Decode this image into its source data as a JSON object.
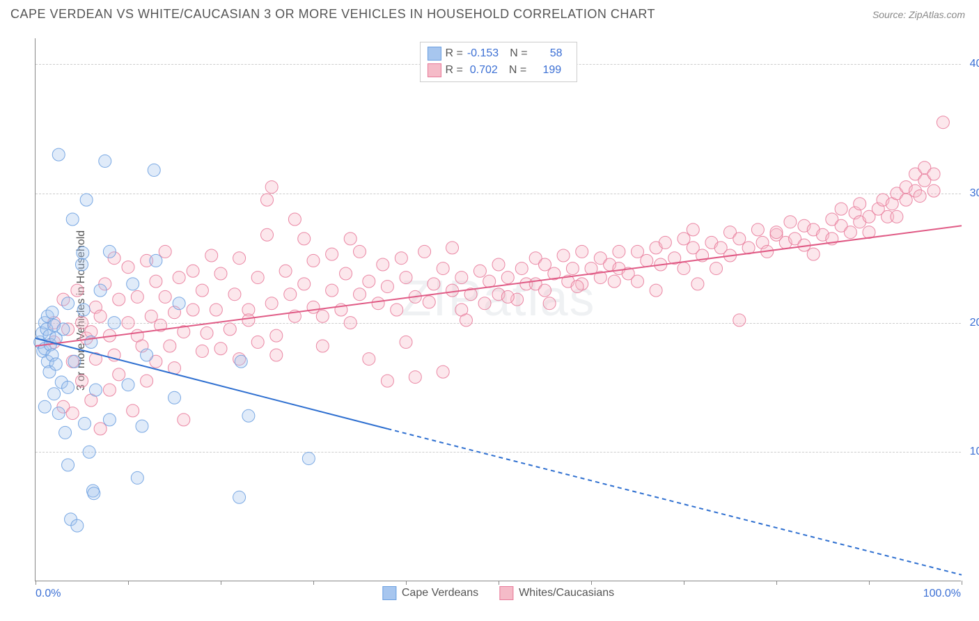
{
  "header": {
    "title": "CAPE VERDEAN VS WHITE/CAUCASIAN 3 OR MORE VEHICLES IN HOUSEHOLD CORRELATION CHART",
    "source": "Source: ZipAtlas.com"
  },
  "chart": {
    "type": "scatter",
    "ylabel": "3 or more Vehicles in Household",
    "xlim": [
      0,
      100
    ],
    "ylim": [
      0,
      42
    ],
    "xtick_labels": {
      "min": "0.0%",
      "max": "100.0%"
    },
    "xtick_positions": [
      0,
      10,
      20,
      30,
      40,
      50,
      60,
      70,
      80,
      90,
      100
    ],
    "ytick_positions": [
      10,
      20,
      30,
      40
    ],
    "ytick_labels": [
      "10.0%",
      "20.0%",
      "30.0%",
      "40.0%"
    ],
    "grid_color": "#cccccc",
    "background_color": "#ffffff",
    "axis_color": "#888888",
    "label_color": "#555555",
    "tick_label_color": "#3b6fd4",
    "marker_radius": 9,
    "marker_fill_opacity": 0.35,
    "marker_stroke_opacity": 0.9,
    "line_width": 2,
    "watermark": "ZIPatlas",
    "series": [
      {
        "name": "Cape Verdeans",
        "color_fill": "#a7c6ef",
        "color_stroke": "#6a9fe0",
        "R": "-0.153",
        "N": "58",
        "trend": {
          "solid_x1": 0,
          "solid_y1": 18.8,
          "solid_x2": 38,
          "solid_y2": 11.8,
          "dash_x2": 100,
          "dash_y2": 0.5,
          "line_color": "#2e6fd0"
        },
        "points": [
          [
            0.5,
            18.5
          ],
          [
            0.7,
            19.2
          ],
          [
            0.8,
            17.8
          ],
          [
            1.0,
            20.0
          ],
          [
            1.0,
            18.0
          ],
          [
            1.2,
            19.5
          ],
          [
            1.3,
            17.0
          ],
          [
            1.3,
            20.5
          ],
          [
            1.5,
            19.0
          ],
          [
            1.5,
            16.2
          ],
          [
            1.6,
            18.3
          ],
          [
            1.8,
            20.8
          ],
          [
            1.8,
            17.5
          ],
          [
            2.0,
            14.5
          ],
          [
            2.0,
            19.8
          ],
          [
            2.2,
            16.8
          ],
          [
            2.2,
            18.8
          ],
          [
            2.5,
            13.0
          ],
          [
            2.8,
            15.4
          ],
          [
            2.5,
            33.0
          ],
          [
            3.0,
            19.5
          ],
          [
            3.2,
            11.5
          ],
          [
            3.5,
            9.0
          ],
          [
            3.5,
            21.5
          ],
          [
            3.5,
            15.0
          ],
          [
            4.0,
            28.0
          ],
          [
            4.2,
            17.0
          ],
          [
            5.0,
            24.5
          ],
          [
            5.1,
            25.4
          ],
          [
            5.2,
            21.0
          ],
          [
            5.3,
            12.2
          ],
          [
            5.5,
            29.5
          ],
          [
            6.0,
            18.5
          ],
          [
            6.2,
            7.0
          ],
          [
            6.3,
            6.8
          ],
          [
            6.5,
            14.8
          ],
          [
            7.0,
            22.5
          ],
          [
            7.5,
            32.5
          ],
          [
            8.0,
            25.5
          ],
          [
            8.0,
            12.5
          ],
          [
            8.5,
            20.0
          ],
          [
            10.0,
            15.2
          ],
          [
            10.5,
            23.0
          ],
          [
            11.0,
            8.0
          ],
          [
            11.5,
            12.0
          ],
          [
            12.0,
            17.5
          ],
          [
            12.8,
            31.8
          ],
          [
            13.0,
            24.8
          ],
          [
            15.0,
            14.2
          ],
          [
            15.5,
            21.5
          ],
          [
            22.0,
            6.5
          ],
          [
            22.2,
            17.0
          ],
          [
            23.0,
            12.8
          ],
          [
            29.5,
            9.5
          ],
          [
            3.8,
            4.8
          ],
          [
            4.5,
            4.3
          ],
          [
            5.8,
            10.0
          ],
          [
            1.0,
            13.5
          ]
        ]
      },
      {
        "name": "Whites/Caucasians",
        "color_fill": "#f5bbc8",
        "color_stroke": "#e87a9a",
        "R": "0.702",
        "N": "199",
        "trend": {
          "solid_x1": 0,
          "solid_y1": 18.2,
          "solid_x2": 100,
          "solid_y2": 27.5,
          "line_color": "#e05a85"
        },
        "points": [
          [
            2,
            20
          ],
          [
            2,
            18.5
          ],
          [
            3,
            13.5
          ],
          [
            3,
            21.8
          ],
          [
            3.5,
            19.5
          ],
          [
            4,
            17
          ],
          [
            4,
            13
          ],
          [
            4.5,
            22.5
          ],
          [
            5,
            20
          ],
          [
            5,
            15.5
          ],
          [
            5.5,
            18.8
          ],
          [
            6,
            14
          ],
          [
            6,
            19.3
          ],
          [
            6.5,
            21.2
          ],
          [
            6.5,
            17.2
          ],
          [
            7,
            20.5
          ],
          [
            7,
            11.8
          ],
          [
            7.5,
            23
          ],
          [
            8,
            14.8
          ],
          [
            8,
            19
          ],
          [
            8.5,
            25
          ],
          [
            8.5,
            17.5
          ],
          [
            9,
            21.8
          ],
          [
            9,
            16
          ],
          [
            10,
            24.3
          ],
          [
            10,
            20
          ],
          [
            10.5,
            13.2
          ],
          [
            11,
            19
          ],
          [
            11,
            22
          ],
          [
            11.5,
            18.2
          ],
          [
            12,
            24.8
          ],
          [
            12,
            15.5
          ],
          [
            12.5,
            20.5
          ],
          [
            13,
            23.2
          ],
          [
            13,
            17
          ],
          [
            13.5,
            19.8
          ],
          [
            14,
            22
          ],
          [
            14,
            25.5
          ],
          [
            14.5,
            18.2
          ],
          [
            15,
            20.8
          ],
          [
            15,
            16.5
          ],
          [
            15.5,
            23.5
          ],
          [
            16,
            19.3
          ],
          [
            16,
            12.5
          ],
          [
            17,
            21
          ],
          [
            17,
            24
          ],
          [
            18,
            17.8
          ],
          [
            18,
            22.5
          ],
          [
            18.5,
            19.2
          ],
          [
            19,
            25.2
          ],
          [
            19.5,
            21
          ],
          [
            20,
            18
          ],
          [
            20,
            23.8
          ],
          [
            21,
            19.5
          ],
          [
            21.5,
            22.2
          ],
          [
            22,
            25
          ],
          [
            22,
            17.2
          ],
          [
            23,
            21
          ],
          [
            23,
            20.2
          ],
          [
            24,
            23.5
          ],
          [
            24,
            18.5
          ],
          [
            25,
            26.8
          ],
          [
            25,
            29.5
          ],
          [
            25.5,
            30.5
          ],
          [
            25.5,
            21.5
          ],
          [
            26,
            19
          ],
          [
            26,
            17.5
          ],
          [
            27,
            24
          ],
          [
            27.5,
            22.2
          ],
          [
            28,
            28
          ],
          [
            28,
            20.5
          ],
          [
            29,
            23
          ],
          [
            29,
            26.5
          ],
          [
            30,
            21.2
          ],
          [
            30,
            24.8
          ],
          [
            31,
            20.5
          ],
          [
            31,
            18.2
          ],
          [
            32,
            22.5
          ],
          [
            32,
            25.3
          ],
          [
            33,
            21
          ],
          [
            33.5,
            23.8
          ],
          [
            34,
            26.5
          ],
          [
            34,
            20
          ],
          [
            35,
            22.2
          ],
          [
            35,
            25.5
          ],
          [
            36,
            17.2
          ],
          [
            36,
            23.2
          ],
          [
            37,
            21.5
          ],
          [
            37.5,
            24.5
          ],
          [
            38,
            15.5
          ],
          [
            38,
            22.8
          ],
          [
            39,
            21
          ],
          [
            39.5,
            25
          ],
          [
            40,
            18.5
          ],
          [
            40,
            23.5
          ],
          [
            41,
            22
          ],
          [
            41,
            15.8
          ],
          [
            42,
            25.5
          ],
          [
            42.5,
            21.6
          ],
          [
            43,
            23
          ],
          [
            44,
            16.2
          ],
          [
            44,
            24.2
          ],
          [
            45,
            22.5
          ],
          [
            45,
            25.8
          ],
          [
            46,
            21
          ],
          [
            46,
            23.5
          ],
          [
            47,
            22.2
          ],
          [
            48,
            24
          ],
          [
            48.5,
            21.5
          ],
          [
            49,
            23.2
          ],
          [
            50,
            24.5
          ],
          [
            50,
            22.2
          ],
          [
            51,
            23.5
          ],
          [
            52,
            21.8
          ],
          [
            52.5,
            24.2
          ],
          [
            53,
            23
          ],
          [
            54,
            25
          ],
          [
            54,
            23
          ],
          [
            55,
            24.5
          ],
          [
            55,
            22.5
          ],
          [
            56,
            23.8
          ],
          [
            57,
            25.2
          ],
          [
            57.5,
            23.2
          ],
          [
            58,
            24.2
          ],
          [
            59,
            25.5
          ],
          [
            59,
            23
          ],
          [
            60,
            24.2
          ],
          [
            61,
            25
          ],
          [
            61,
            23.5
          ],
          [
            62,
            24.5
          ],
          [
            63,
            25.5
          ],
          [
            63,
            24.2
          ],
          [
            64,
            23.8
          ],
          [
            65,
            25.5
          ],
          [
            65,
            23.2
          ],
          [
            66,
            24.8
          ],
          [
            67,
            25.8
          ],
          [
            67.5,
            24.5
          ],
          [
            68,
            26.2
          ],
          [
            69,
            25
          ],
          [
            70,
            24.2
          ],
          [
            70,
            26.5
          ],
          [
            71,
            25.8
          ],
          [
            71,
            27.2
          ],
          [
            72,
            25.2
          ],
          [
            73,
            26.2
          ],
          [
            73.5,
            24.2
          ],
          [
            74,
            25.8
          ],
          [
            75,
            27
          ],
          [
            75,
            25.2
          ],
          [
            76,
            26.5
          ],
          [
            76,
            20.2
          ],
          [
            77,
            25.8
          ],
          [
            78,
            27.2
          ],
          [
            78.5,
            26.2
          ],
          [
            79,
            25.5
          ],
          [
            80,
            26.8
          ],
          [
            80,
            27
          ],
          [
            81,
            26.2
          ],
          [
            81.5,
            27.8
          ],
          [
            82,
            26.5
          ],
          [
            83,
            27.5
          ],
          [
            83,
            26
          ],
          [
            84,
            27.2
          ],
          [
            84,
            25.3
          ],
          [
            85,
            26.8
          ],
          [
            86,
            28
          ],
          [
            86,
            26.5
          ],
          [
            87,
            27.5
          ],
          [
            87,
            28.8
          ],
          [
            88,
            27
          ],
          [
            88.5,
            28.5
          ],
          [
            89,
            27.8
          ],
          [
            89,
            29.2
          ],
          [
            90,
            28.2
          ],
          [
            90,
            27
          ],
          [
            91,
            28.8
          ],
          [
            91.5,
            29.5
          ],
          [
            92,
            28.2
          ],
          [
            92.5,
            29.2
          ],
          [
            93,
            30
          ],
          [
            93,
            28.2
          ],
          [
            94,
            29.5
          ],
          [
            94,
            30.5
          ],
          [
            95,
            30.2
          ],
          [
            95,
            31.5
          ],
          [
            95.5,
            29.8
          ],
          [
            96,
            31
          ],
          [
            96,
            32
          ],
          [
            97,
            31.5
          ],
          [
            97,
            30.2
          ],
          [
            98,
            35.5
          ],
          [
            46.5,
            20.2
          ],
          [
            51,
            22
          ],
          [
            55.5,
            21.5
          ],
          [
            58.5,
            22.8
          ],
          [
            62.5,
            23.2
          ],
          [
            67,
            22.5
          ],
          [
            71.5,
            23
          ]
        ]
      }
    ],
    "legend_bottom": [
      {
        "label": "Cape Verdeans"
      },
      {
        "label": "Whites/Caucasians"
      }
    ]
  }
}
